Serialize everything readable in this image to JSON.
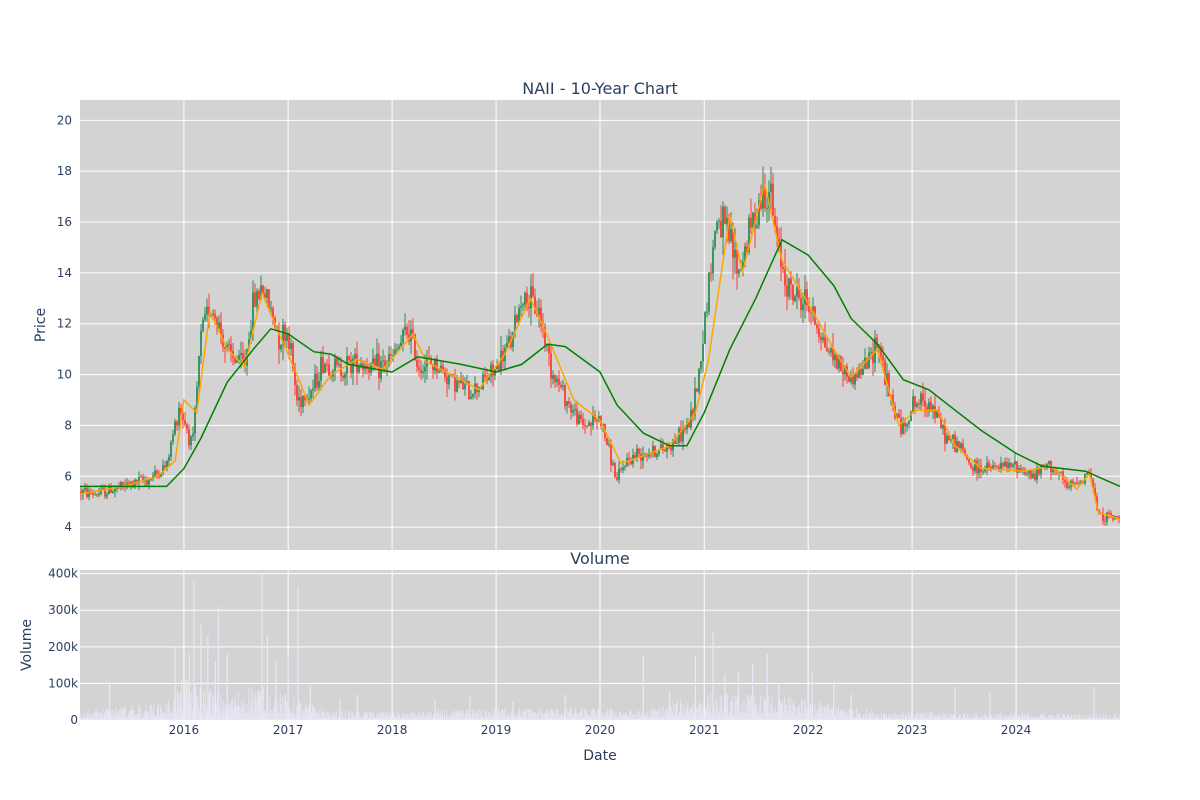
{
  "chart_data": [
    {
      "type": "candlestick",
      "title": "NAII - 10-Year Chart",
      "ylabel": "Price",
      "x_range": [
        "2015-01-01",
        "2024-12-31"
      ],
      "ylim": [
        3.1,
        20.8
      ],
      "y_ticks": [
        4,
        6,
        8,
        10,
        12,
        14,
        16,
        18,
        20
      ],
      "grid": true,
      "legend": "none",
      "colors": {
        "up": "#2e8b57",
        "down": "#ff3b30",
        "ma_short": "#ffa500",
        "ma_long": "#008000",
        "plot_bg": "#d3d3d3"
      },
      "price_path": [
        [
          "2015-01-01",
          5.4
        ],
        [
          "2015-03-01",
          5.3
        ],
        [
          "2015-06-01",
          5.6
        ],
        [
          "2015-09-01",
          5.9
        ],
        [
          "2015-11-01",
          6.4
        ],
        [
          "2015-12-15",
          8.8
        ],
        [
          "2016-02-01",
          7.2
        ],
        [
          "2016-03-01",
          11.5
        ],
        [
          "2016-04-01",
          12.8
        ],
        [
          "2016-05-01",
          12.0
        ],
        [
          "2016-06-01",
          10.8
        ],
        [
          "2016-08-01",
          10.4
        ],
        [
          "2016-09-01",
          12.8
        ],
        [
          "2016-10-01",
          13.5
        ],
        [
          "2016-11-01",
          12.5
        ],
        [
          "2016-12-01",
          11.5
        ],
        [
          "2017-01-01",
          11.7
        ],
        [
          "2017-02-01",
          9.0
        ],
        [
          "2017-04-01",
          9.5
        ],
        [
          "2017-05-01",
          10.5
        ],
        [
          "2017-07-01",
          10.2
        ],
        [
          "2017-09-01",
          10.6
        ],
        [
          "2017-11-01",
          10.2
        ],
        [
          "2018-01-01",
          10.6
        ],
        [
          "2018-03-01",
          11.8
        ],
        [
          "2018-04-01",
          10.4
        ],
        [
          "2018-06-01",
          10.4
        ],
        [
          "2018-08-01",
          9.8
        ],
        [
          "2018-10-01",
          9.3
        ],
        [
          "2019-01-01",
          10.2
        ],
        [
          "2019-03-01",
          11.5
        ],
        [
          "2019-04-01",
          13.1
        ],
        [
          "2019-06-01",
          12.5
        ],
        [
          "2019-07-15",
          10.2
        ],
        [
          "2019-09-15",
          8.8
        ],
        [
          "2019-11-01",
          8.0
        ],
        [
          "2020-01-01",
          8.3
        ],
        [
          "2020-03-01",
          5.8
        ],
        [
          "2020-04-01",
          6.6
        ],
        [
          "2020-06-01",
          7.0
        ],
        [
          "2020-08-01",
          7.0
        ],
        [
          "2020-10-01",
          7.5
        ],
        [
          "2020-11-15",
          8.2
        ],
        [
          "2020-12-15",
          10.2
        ],
        [
          "2021-01-15",
          13.5
        ],
        [
          "2021-02-15",
          16.2
        ],
        [
          "2021-04-01",
          15.3
        ],
        [
          "2021-05-01",
          14.0
        ],
        [
          "2021-07-01",
          16.5
        ],
        [
          "2021-08-15",
          17.5
        ],
        [
          "2021-09-15",
          15.0
        ],
        [
          "2021-11-01",
          13.2
        ],
        [
          "2022-01-01",
          12.8
        ],
        [
          "2022-03-01",
          11.2
        ],
        [
          "2022-04-15",
          10.5
        ],
        [
          "2022-06-01",
          9.8
        ],
        [
          "2022-08-01",
          10.5
        ],
        [
          "2022-09-01",
          11.5
        ],
        [
          "2022-10-15",
          9.0
        ],
        [
          "2022-12-01",
          7.8
        ],
        [
          "2023-01-01",
          8.8
        ],
        [
          "2023-03-01",
          9.0
        ],
        [
          "2023-05-01",
          7.5
        ],
        [
          "2023-06-15",
          7.2
        ],
        [
          "2023-08-01",
          6.3
        ],
        [
          "2023-10-01",
          6.3
        ],
        [
          "2024-01-01",
          6.4
        ],
        [
          "2024-03-01",
          6.0
        ],
        [
          "2024-05-01",
          6.5
        ],
        [
          "2024-07-01",
          5.5
        ],
        [
          "2024-09-15",
          6.2
        ],
        [
          "2024-10-15",
          4.5
        ],
        [
          "2024-12-31",
          4.3
        ]
      ],
      "ma_short": [
        [
          "2015-01-01",
          5.3
        ],
        [
          "2015-06-01",
          5.6
        ],
        [
          "2015-10-01",
          6.0
        ],
        [
          "2015-12-01",
          6.6
        ],
        [
          "2016-01-01",
          9.0
        ],
        [
          "2016-02-15",
          8.5
        ],
        [
          "2016-04-01",
          12.5
        ],
        [
          "2016-06-01",
          11.0
        ],
        [
          "2016-08-01",
          10.3
        ],
        [
          "2016-10-01",
          13.2
        ],
        [
          "2016-12-01",
          11.6
        ],
        [
          "2017-02-01",
          10.0
        ],
        [
          "2017-03-15",
          8.8
        ],
        [
          "2017-06-01",
          10.0
        ],
        [
          "2017-09-01",
          10.6
        ],
        [
          "2017-12-01",
          10.2
        ],
        [
          "2018-03-15",
          11.6
        ],
        [
          "2018-05-01",
          10.5
        ],
        [
          "2018-09-01",
          9.8
        ],
        [
          "2018-11-01",
          9.4
        ],
        [
          "2019-02-01",
          10.8
        ],
        [
          "2019-05-01",
          13.0
        ],
        [
          "2019-07-01",
          11.5
        ],
        [
          "2019-10-01",
          9.0
        ],
        [
          "2020-01-01",
          8.2
        ],
        [
          "2020-03-15",
          6.5
        ],
        [
          "2020-06-01",
          6.8
        ],
        [
          "2020-09-01",
          7.2
        ],
        [
          "2020-12-01",
          8.5
        ],
        [
          "2021-01-15",
          10.5
        ],
        [
          "2021-04-01",
          16.3
        ],
        [
          "2021-05-15",
          14.0
        ],
        [
          "2021-08-01",
          17.5
        ],
        [
          "2021-10-01",
          14.5
        ],
        [
          "2022-01-01",
          12.8
        ],
        [
          "2022-04-01",
          11.0
        ],
        [
          "2022-06-01",
          9.9
        ],
        [
          "2022-09-01",
          11.0
        ],
        [
          "2022-11-15",
          8.0
        ],
        [
          "2023-01-15",
          8.6
        ],
        [
          "2023-04-01",
          8.6
        ],
        [
          "2023-06-01",
          7.2
        ],
        [
          "2023-09-01",
          6.3
        ],
        [
          "2024-02-01",
          6.2
        ],
        [
          "2024-05-01",
          6.4
        ],
        [
          "2024-08-01",
          5.5
        ],
        [
          "2024-09-15",
          6.1
        ],
        [
          "2024-10-15",
          4.6
        ],
        [
          "2024-12-31",
          4.3
        ]
      ],
      "ma_long": [
        [
          "2015-01-01",
          5.6
        ],
        [
          "2015-06-01",
          5.6
        ],
        [
          "2015-11-01",
          5.6
        ],
        [
          "2016-01-01",
          6.3
        ],
        [
          "2016-03-01",
          7.5
        ],
        [
          "2016-06-01",
          9.7
        ],
        [
          "2016-09-01",
          11.0
        ],
        [
          "2016-11-01",
          11.8
        ],
        [
          "2017-01-01",
          11.6
        ],
        [
          "2017-04-01",
          10.9
        ],
        [
          "2017-06-01",
          10.8
        ],
        [
          "2017-08-01",
          10.4
        ],
        [
          "2018-01-01",
          10.1
        ],
        [
          "2018-04-01",
          10.7
        ],
        [
          "2018-09-01",
          10.4
        ],
        [
          "2019-01-01",
          10.1
        ],
        [
          "2019-04-01",
          10.4
        ],
        [
          "2019-07-01",
          11.2
        ],
        [
          "2019-09-01",
          11.1
        ],
        [
          "2020-01-01",
          10.1
        ],
        [
          "2020-03-01",
          8.8
        ],
        [
          "2020-06-01",
          7.7
        ],
        [
          "2020-09-01",
          7.2
        ],
        [
          "2020-11-01",
          7.2
        ],
        [
          "2021-01-01",
          8.5
        ],
        [
          "2021-04-01",
          11.0
        ],
        [
          "2021-07-01",
          13.0
        ],
        [
          "2021-10-01",
          15.3
        ],
        [
          "2022-01-01",
          14.7
        ],
        [
          "2022-04-01",
          13.5
        ],
        [
          "2022-06-01",
          12.2
        ],
        [
          "2022-09-01",
          11.2
        ],
        [
          "2022-12-01",
          9.8
        ],
        [
          "2023-03-01",
          9.4
        ],
        [
          "2023-06-01",
          8.6
        ],
        [
          "2023-09-01",
          7.8
        ],
        [
          "2024-01-01",
          6.9
        ],
        [
          "2024-04-01",
          6.4
        ],
        [
          "2024-09-01",
          6.2
        ],
        [
          "2024-12-31",
          5.6
        ]
      ]
    },
    {
      "type": "bar",
      "title": "Volume",
      "xlabel": "Date",
      "ylabel": "Volume",
      "ylim": [
        0,
        410000
      ],
      "y_ticks": [
        0,
        100000,
        200000,
        300000,
        400000
      ],
      "y_tick_labels": [
        "0",
        "100k",
        "200k",
        "300k",
        "400k"
      ],
      "x_tick_labels": [
        "2016",
        "2017",
        "2018",
        "2019",
        "2020",
        "2021",
        "2022",
        "2023",
        "2024"
      ],
      "grid": true,
      "colors": {
        "bars": "#e8e8f8"
      },
      "base_level": [
        [
          "2015-01-01",
          15000
        ],
        [
          "2015-11-01",
          30000
        ],
        [
          "2016-01-01",
          70000
        ],
        [
          "2016-06-01",
          40000
        ],
        [
          "2016-09-01",
          60000
        ],
        [
          "2017-02-01",
          35000
        ],
        [
          "2017-06-01",
          15000
        ],
        [
          "2018-06-01",
          15000
        ],
        [
          "2019-01-01",
          20000
        ],
        [
          "2020-01-01",
          20000
        ],
        [
          "2020-06-01",
          15000
        ],
        [
          "2021-01-01",
          45000
        ],
        [
          "2021-09-01",
          40000
        ],
        [
          "2022-03-01",
          30000
        ],
        [
          "2022-09-01",
          15000
        ],
        [
          "2023-06-01",
          12000
        ],
        [
          "2024-12-31",
          10000
        ]
      ],
      "spikes": [
        [
          "2015-04-15",
          105000
        ],
        [
          "2015-12-01",
          200000
        ],
        [
          "2016-01-20",
          180000
        ],
        [
          "2016-02-05",
          380000
        ],
        [
          "2016-03-01",
          260000
        ],
        [
          "2016-03-25",
          230000
        ],
        [
          "2016-04-20",
          160000
        ],
        [
          "2016-05-01",
          310000
        ],
        [
          "2016-06-01",
          180000
        ],
        [
          "2016-10-01",
          400000
        ],
        [
          "2016-10-20",
          230000
        ],
        [
          "2016-11-20",
          160000
        ],
        [
          "2017-01-01",
          175000
        ],
        [
          "2017-02-05",
          365000
        ],
        [
          "2017-03-20",
          100000
        ],
        [
          "2017-07-01",
          60000
        ],
        [
          "2017-09-01",
          70000
        ],
        [
          "2018-06-01",
          55000
        ],
        [
          "2018-10-01",
          65000
        ],
        [
          "2019-03-01",
          50000
        ],
        [
          "2019-09-01",
          70000
        ],
        [
          "2020-06-01",
          175000
        ],
        [
          "2020-09-01",
          80000
        ],
        [
          "2020-12-01",
          175000
        ],
        [
          "2021-02-01",
          240000
        ],
        [
          "2021-03-15",
          125000
        ],
        [
          "2021-05-01",
          130000
        ],
        [
          "2021-06-20",
          155000
        ],
        [
          "2021-08-10",
          180000
        ],
        [
          "2021-09-20",
          100000
        ],
        [
          "2022-01-15",
          130000
        ],
        [
          "2022-04-01",
          105000
        ],
        [
          "2022-06-01",
          70000
        ],
        [
          "2023-06-01",
          90000
        ],
        [
          "2023-10-01",
          75000
        ],
        [
          "2024-10-01",
          90000
        ]
      ]
    }
  ]
}
